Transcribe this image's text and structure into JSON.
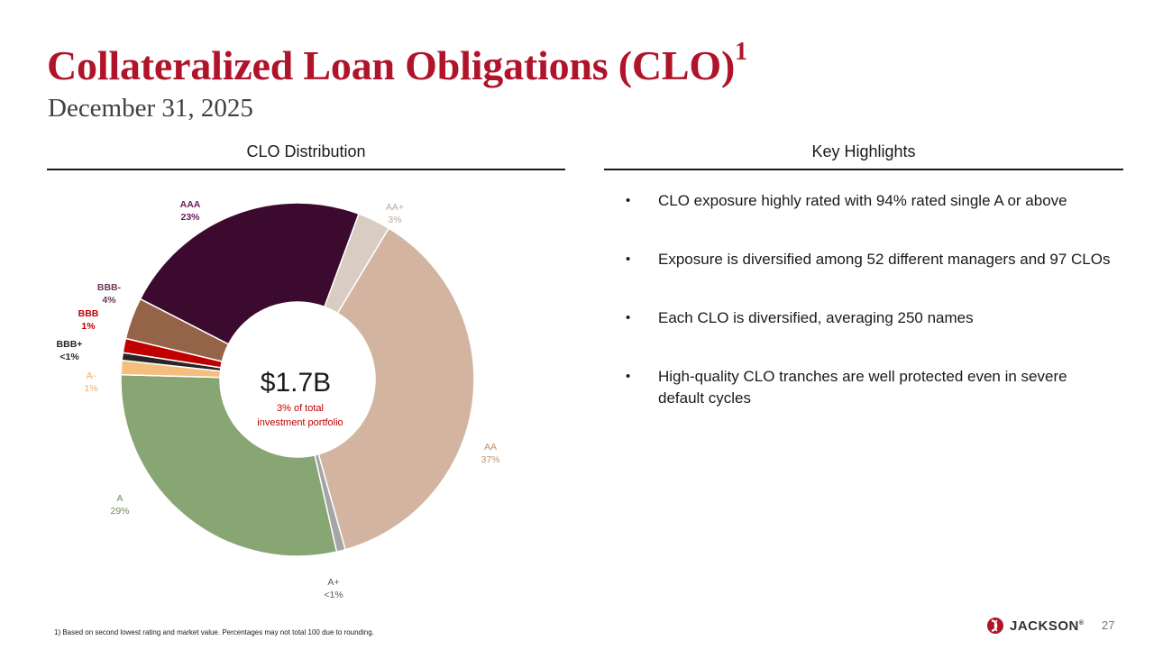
{
  "title": "Collateralized Loan Obligations (CLO)",
  "title_superscript": "1",
  "subtitle": "December 31, 2025",
  "left_heading": "CLO Distribution",
  "right_heading": "Key Highlights",
  "chart_data": {
    "type": "pie",
    "title": "",
    "center_label": "$1.7B",
    "center_sublabel_line1": "3% of total",
    "center_sublabel_line2": "investment portfolio",
    "slices": [
      {
        "name": "AA+",
        "label": "3%",
        "value": 3,
        "color": "#d8ccc3"
      },
      {
        "name": "AA",
        "label": "37%",
        "value": 37,
        "color": "#d2b4a1"
      },
      {
        "name": "A+",
        "label": "<1%",
        "value": 0.8,
        "color": "#a5a5a5"
      },
      {
        "name": "A",
        "label": "29%",
        "value": 29,
        "color": "#88a574"
      },
      {
        "name": "A-",
        "label": "1%",
        "value": 1.3,
        "color": "#f5be7e"
      },
      {
        "name": "BBB+",
        "label": "<1%",
        "value": 0.7,
        "color": "#262626"
      },
      {
        "name": "BBB",
        "label": "1%",
        "value": 1.3,
        "color": "#c00000"
      },
      {
        "name": "BBB-",
        "label": "4%",
        "value": 3.8,
        "color": "#946348"
      },
      {
        "name": "AAA",
        "label": "23%",
        "value": 23.1,
        "color": "#3c0a2e"
      }
    ]
  },
  "highlights": [
    "CLO exposure highly rated with 94% rated single A or above",
    "Exposure is diversified among 52 different managers and 97 CLOs",
    "Each CLO is diversified, averaging 250 names",
    "High-quality CLO tranches are well protected even in severe default cycles"
  ],
  "bullet_char": "•",
  "footnote": "1) Based on second lowest rating and market value.  Percentages may not total 100 due to rounding.",
  "logo_text": "JACKSON",
  "logo_mark": "®",
  "page_number": "27",
  "brand_color": "#b0142a"
}
